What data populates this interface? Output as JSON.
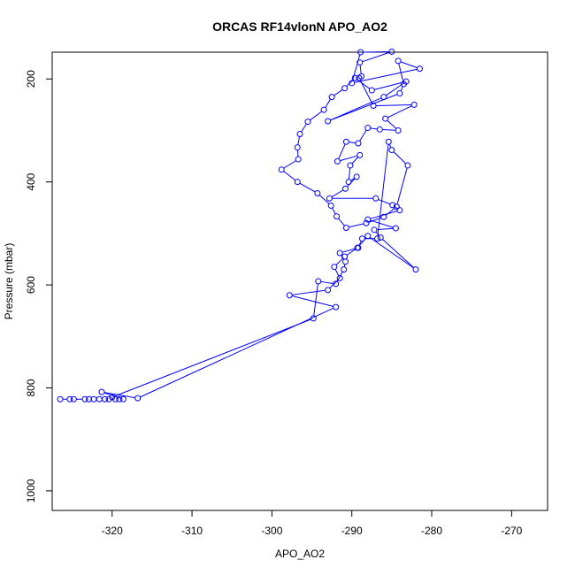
{
  "chart_data": {
    "type": "line",
    "title": "ORCAS RF14vlonN APO_AO2",
    "xlabel": "APO_AO2",
    "ylabel": "Pressure (mbar)",
    "xlim": [
      -327.5,
      -265.5
    ],
    "ylim": [
      1038,
      148
    ],
    "y_reversed": true,
    "grid": false,
    "line_color": "#0000ff",
    "marker": "open-circle",
    "x_ticks": [
      -320,
      -310,
      -300,
      -290,
      -280,
      -270
    ],
    "y_ticks": [
      200,
      400,
      600,
      800,
      1000
    ],
    "series": [
      {
        "points": [
          [
            -326.5,
            822
          ],
          [
            -325.3,
            822
          ],
          [
            -324.8,
            822
          ],
          [
            -323.4,
            822
          ],
          [
            -322.9,
            822
          ],
          [
            -322.3,
            822
          ],
          [
            -321.6,
            822
          ],
          [
            -320.9,
            822
          ],
          [
            -320.4,
            822
          ],
          [
            -319.6,
            822
          ],
          [
            -319.1,
            822
          ],
          [
            -318.6,
            822
          ],
          [
            -321.3,
            808
          ],
          [
            -316.8,
            820
          ],
          [
            -292.0,
            643
          ],
          [
            -297.8,
            620
          ],
          [
            -293.0,
            610
          ],
          [
            -291.5,
            587
          ],
          [
            -292.2,
            565
          ],
          [
            -290.9,
            545
          ],
          [
            -289.3,
            528
          ],
          [
            -288.0,
            505
          ],
          [
            -282.0,
            570
          ],
          [
            -286.4,
            508
          ],
          [
            -287.2,
            493
          ],
          [
            -284.5,
            490
          ],
          [
            -288.0,
            473
          ],
          [
            -284.0,
            455
          ],
          [
            -284.9,
            445
          ],
          [
            -287.0,
            432
          ],
          [
            -292.8,
            432
          ],
          [
            -290.8,
            413
          ],
          [
            -289.4,
            390
          ],
          [
            -290.4,
            400
          ],
          [
            -290.2,
            368
          ],
          [
            -289.0,
            348
          ],
          [
            -291.8,
            360
          ],
          [
            -290.7,
            322
          ],
          [
            -289.2,
            325
          ],
          [
            -288.0,
            295
          ],
          [
            -286.5,
            298
          ],
          [
            -284.2,
            300
          ],
          [
            -285.8,
            277
          ],
          [
            -282.2,
            250
          ],
          [
            -287.3,
            252
          ],
          [
            -289.1,
            198
          ],
          [
            -288.8,
            195
          ],
          [
            -289.0,
            168
          ],
          [
            -285.0,
            147
          ],
          [
            -288.9,
            148
          ],
          [
            -290.0,
            208
          ],
          [
            -281.5,
            180
          ],
          [
            -284.2,
            165
          ],
          [
            -283.5,
            210
          ],
          [
            -284.0,
            228
          ],
          [
            -293.0,
            282
          ],
          [
            -286.0,
            235
          ],
          [
            -283.2,
            205
          ],
          [
            -287.5,
            222
          ],
          [
            -289.6,
            198
          ],
          [
            -290.9,
            218
          ],
          [
            -292.5,
            235
          ],
          [
            -293.5,
            260
          ],
          [
            -295.5,
            283
          ],
          [
            -296.5,
            307
          ],
          [
            -296.8,
            333
          ],
          [
            -296.7,
            356
          ],
          [
            -298.8,
            376
          ],
          [
            -296.8,
            400
          ],
          [
            -294.3,
            422
          ],
          [
            -292.6,
            446
          ],
          [
            -291.9,
            467
          ],
          [
            -290.7,
            489
          ],
          [
            -288.2,
            480
          ],
          [
            -286.0,
            468
          ],
          [
            -284.4,
            448
          ],
          [
            -283.0,
            368
          ],
          [
            -285.0,
            338
          ],
          [
            -285.4,
            322
          ],
          [
            -286.8,
            510
          ],
          [
            -288.7,
            510
          ],
          [
            -289.2,
            528
          ],
          [
            -291.5,
            538
          ],
          [
            -290.8,
            555
          ],
          [
            -291.0,
            570
          ],
          [
            -292.0,
            598
          ],
          [
            -294.2,
            593
          ],
          [
            -294.8,
            665
          ],
          [
            -320.0,
            818
          ]
        ]
      }
    ]
  }
}
